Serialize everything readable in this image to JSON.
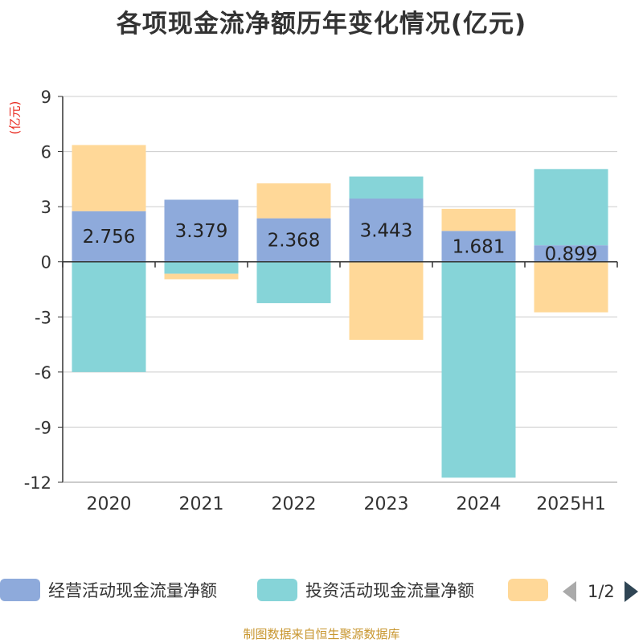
{
  "title": "各项现金流净额历年变化情况(亿元)",
  "unit_label": "(亿元)",
  "source": "制图数据来自恒生聚源数据库",
  "chart_data": {
    "type": "bar",
    "stacked": true,
    "categories": [
      "2020",
      "2021",
      "2022",
      "2023",
      "2024",
      "2025H1"
    ],
    "ylim": [
      -12,
      9
    ],
    "yticks": [
      9,
      6,
      3,
      0,
      -3,
      -6,
      -9,
      -12
    ],
    "grid": true,
    "legend_position": "bottom",
    "series": [
      {
        "name": "经营活动现金流量净额",
        "color": "#8eaadb",
        "values": [
          2.756,
          3.379,
          2.368,
          3.443,
          1.681,
          0.899
        ],
        "labels": [
          "2.756",
          "3.379",
          "2.368",
          "3.443",
          "1.681",
          "0.899"
        ]
      },
      {
        "name": "投资活动现金流量净额",
        "color": "#86d4d8",
        "values": [
          -6.0,
          -0.65,
          -2.25,
          1.2,
          -11.75,
          4.15
        ]
      },
      {
        "name": "",
        "color": "#ffd898",
        "values": [
          3.6,
          -0.3,
          1.9,
          -4.25,
          1.2,
          -2.75
        ]
      }
    ]
  },
  "legend": {
    "items": [
      {
        "label": "经营活动现金流量净额",
        "color": "#8eaadb"
      },
      {
        "label": "投资活动现金流量净额",
        "color": "#86d4d8"
      },
      {
        "label": "",
        "color": "#ffd898"
      }
    ],
    "page": "1/2"
  }
}
